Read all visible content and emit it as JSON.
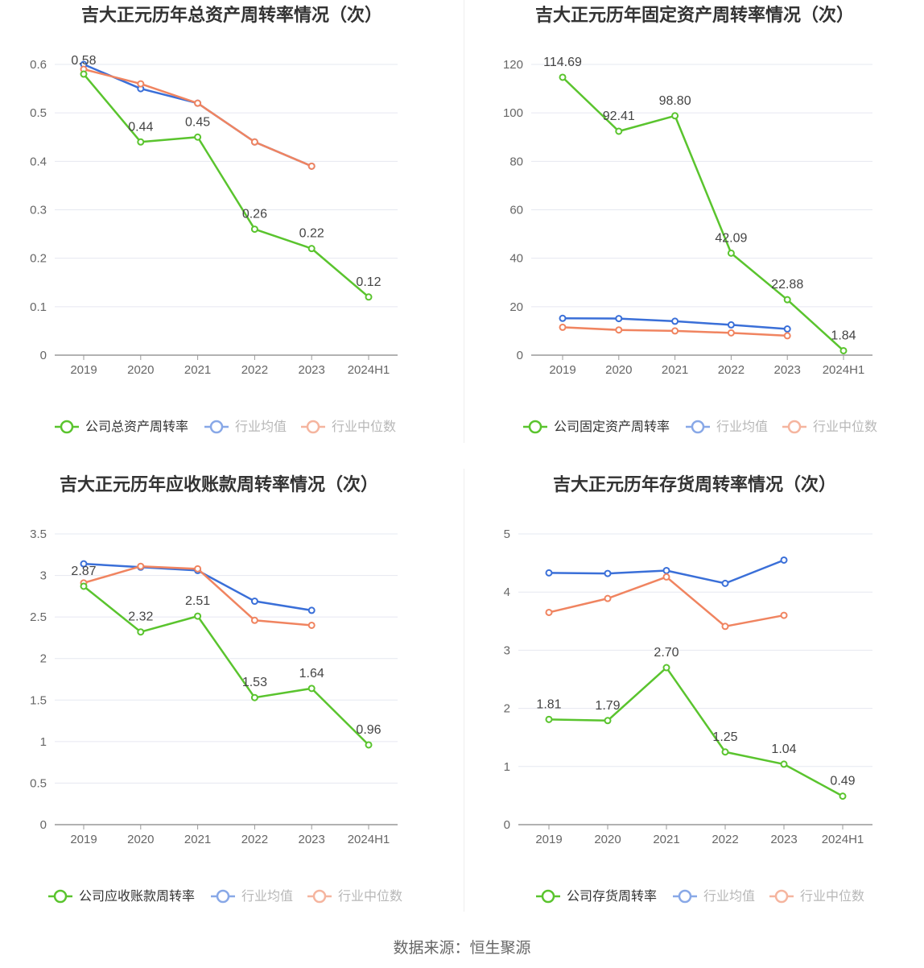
{
  "colors": {
    "company": "#5ac42e",
    "avg": "#3a6fd8",
    "median": "#f08460",
    "axis": "#999999",
    "grid": "#e6e8f0",
    "text": "#666666",
    "title": "#333333",
    "label": "#444444"
  },
  "source_text": "数据来源：恒生聚源",
  "chart_data": [
    {
      "type": "line",
      "title": "吉大正元历年总资产周转率情况（次）",
      "categories": [
        "2019",
        "2020",
        "2021",
        "2022",
        "2023",
        "2024H1"
      ],
      "yticks": [
        "0",
        "0.1",
        "0.2",
        "0.3",
        "0.4",
        "0.5",
        "0.6"
      ],
      "ylim": [
        0,
        0.6
      ],
      "legend": [
        "公司总资产周转率",
        "行业均值",
        "行业中位数"
      ],
      "series": [
        {
          "name": "公司总资产周转率",
          "role": "company",
          "values": [
            0.58,
            0.44,
            0.45,
            0.26,
            0.22,
            0.12
          ],
          "labels": [
            "0.58",
            "0.44",
            "0.45",
            "0.26",
            "0.22",
            "0.12"
          ]
        },
        {
          "name": "行业均值",
          "role": "avg",
          "values": [
            0.6,
            0.55,
            0.52,
            0.44,
            0.39,
            null
          ]
        },
        {
          "name": "行业中位数",
          "role": "median",
          "values": [
            0.59,
            0.56,
            0.52,
            0.44,
            0.39,
            null
          ]
        }
      ]
    },
    {
      "type": "line",
      "title": "吉大正元历年固定资产周转率情况（次）",
      "categories": [
        "2019",
        "2020",
        "2021",
        "2022",
        "2023",
        "2024H1"
      ],
      "yticks": [
        "0",
        "20",
        "40",
        "60",
        "80",
        "100",
        "120"
      ],
      "ylim": [
        0,
        120
      ],
      "legend": [
        "公司固定资产周转率",
        "行业均值",
        "行业中位数"
      ],
      "series": [
        {
          "name": "公司固定资产周转率",
          "role": "company",
          "values": [
            114.69,
            92.41,
            98.8,
            42.09,
            22.88,
            1.84
          ],
          "labels": [
            "114.69",
            "92.41",
            "98.80",
            "42.09",
            "22.88",
            "1.84"
          ]
        },
        {
          "name": "行业均值",
          "role": "avg",
          "values": [
            15.2,
            15.1,
            14.0,
            12.5,
            10.8,
            null
          ]
        },
        {
          "name": "行业中位数",
          "role": "median",
          "values": [
            11.5,
            10.4,
            10.0,
            9.2,
            8.0,
            null
          ]
        }
      ]
    },
    {
      "type": "line",
      "title": "吉大正元历年应收账款周转率情况（次）",
      "categories": [
        "2019",
        "2020",
        "2021",
        "2022",
        "2023",
        "2024H1"
      ],
      "yticks": [
        "0",
        "0.5",
        "1",
        "1.5",
        "2",
        "2.5",
        "3",
        "3.5"
      ],
      "ylim": [
        0,
        3.5
      ],
      "legend": [
        "公司应收账款周转率",
        "行业均值",
        "行业中位数"
      ],
      "series": [
        {
          "name": "公司应收账款周转率",
          "role": "company",
          "values": [
            2.87,
            2.32,
            2.51,
            1.53,
            1.64,
            0.96
          ],
          "labels": [
            "2.87",
            "2.32",
            "2.51",
            "1.53",
            "1.64",
            "0.96"
          ]
        },
        {
          "name": "行业均值",
          "role": "avg",
          "values": [
            3.14,
            3.1,
            3.06,
            2.69,
            2.58,
            null
          ]
        },
        {
          "name": "行业中位数",
          "role": "median",
          "values": [
            2.91,
            3.11,
            3.08,
            2.46,
            2.4,
            null
          ]
        }
      ]
    },
    {
      "type": "line",
      "title": "吉大正元历年存货周转率情况（次）",
      "categories": [
        "2019",
        "2020",
        "2021",
        "2022",
        "2023",
        "2024H1"
      ],
      "yticks": [
        "0",
        "1",
        "2",
        "3",
        "4",
        "5"
      ],
      "ylim": [
        0,
        5
      ],
      "legend": [
        "公司存货周转率",
        "行业均值",
        "行业中位数"
      ],
      "series": [
        {
          "name": "公司存货周转率",
          "role": "company",
          "values": [
            1.81,
            1.79,
            2.7,
            1.25,
            1.04,
            0.49
          ],
          "labels": [
            "1.81",
            "1.79",
            "2.70",
            "1.25",
            "1.04",
            "0.49"
          ]
        },
        {
          "name": "行业均值",
          "role": "avg",
          "values": [
            4.33,
            4.32,
            4.37,
            4.15,
            4.55,
            null
          ]
        },
        {
          "name": "行业中位数",
          "role": "median",
          "values": [
            3.65,
            3.89,
            4.26,
            3.41,
            3.6,
            null
          ]
        }
      ]
    }
  ]
}
